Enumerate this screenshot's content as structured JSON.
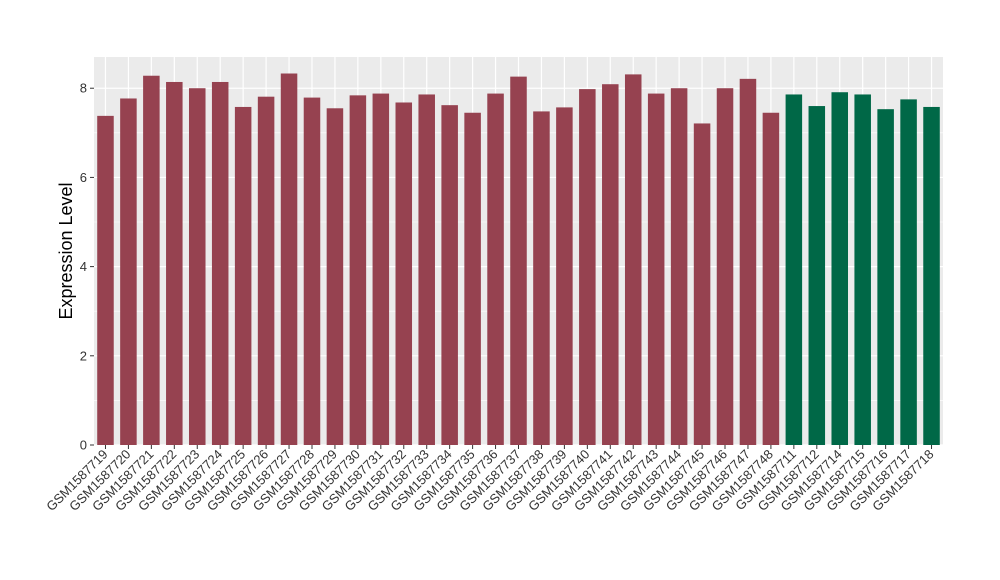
{
  "chart_data": {
    "type": "bar",
    "title": "",
    "xlabel": "",
    "ylabel": "Expression Level",
    "ylim": [
      0,
      8.7
    ],
    "yticks": [
      0,
      2,
      4,
      6,
      8
    ],
    "grid": true,
    "legend": "none",
    "colors": {
      "group1": "#964250",
      "group2": "#006847",
      "panel": "#ebebeb",
      "grid": "#ffffff"
    },
    "categories": [
      "GSM1587719",
      "GSM1587720",
      "GSM1587721",
      "GSM1587722",
      "GSM1587723",
      "GSM1587724",
      "GSM1587725",
      "GSM1587726",
      "GSM1587727",
      "GSM1587728",
      "GSM1587729",
      "GSM1587730",
      "GSM1587731",
      "GSM1587732",
      "GSM1587733",
      "GSM1587734",
      "GSM1587735",
      "GSM1587736",
      "GSM1587737",
      "GSM1587738",
      "GSM1587739",
      "GSM1587740",
      "GSM1587741",
      "GSM1587742",
      "GSM1587743",
      "GSM1587744",
      "GSM1587745",
      "GSM1587746",
      "GSM1587747",
      "GSM1587748",
      "GSM1587711",
      "GSM1587712",
      "GSM1587714",
      "GSM1587715",
      "GSM1587716",
      "GSM1587717",
      "GSM1587718"
    ],
    "values": [
      7.38,
      7.77,
      8.28,
      8.14,
      8.0,
      8.14,
      7.58,
      7.81,
      8.33,
      7.79,
      7.55,
      7.84,
      7.88,
      7.68,
      7.86,
      7.62,
      7.45,
      7.88,
      8.26,
      7.48,
      7.57,
      7.98,
      8.09,
      8.31,
      7.88,
      8.0,
      7.21,
      8.0,
      8.21,
      7.45,
      7.86,
      7.6,
      7.91,
      7.86,
      7.53,
      7.75,
      7.58
    ],
    "groups": [
      "group1",
      "group1",
      "group1",
      "group1",
      "group1",
      "group1",
      "group1",
      "group1",
      "group1",
      "group1",
      "group1",
      "group1",
      "group1",
      "group1",
      "group1",
      "group1",
      "group1",
      "group1",
      "group1",
      "group1",
      "group1",
      "group1",
      "group1",
      "group1",
      "group1",
      "group1",
      "group1",
      "group1",
      "group1",
      "group1",
      "group2",
      "group2",
      "group2",
      "group2",
      "group2",
      "group2",
      "group2"
    ]
  }
}
